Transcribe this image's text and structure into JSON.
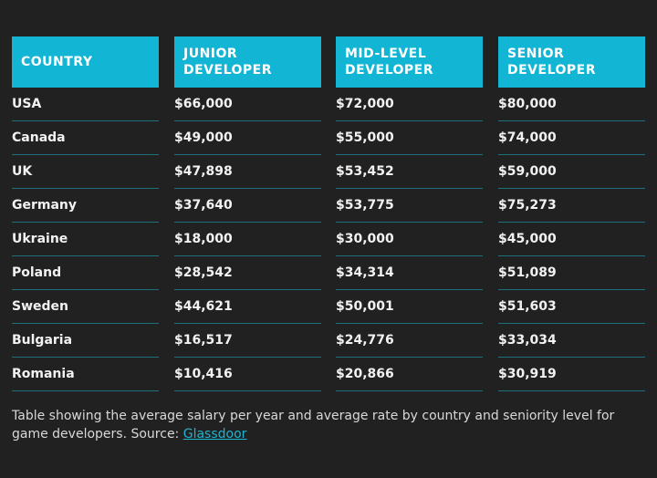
{
  "table": {
    "header": [
      "COUNTRY",
      "JUNIOR DEVELOPER",
      "MID-LEVEL DEVELOPER",
      "SENIOR DEVELOPER"
    ],
    "rows": [
      [
        "USA",
        "$66,000",
        "$72,000",
        "$80,000"
      ],
      [
        "Canada",
        "$49,000",
        "$55,000",
        "$74,000"
      ],
      [
        "UK",
        "$47,898",
        "$53,452",
        "$59,000"
      ],
      [
        "Germany",
        "$37,640",
        "$53,775",
        "$75,273"
      ],
      [
        "Ukraine",
        "$18,000",
        "$30,000",
        "$45,000"
      ],
      [
        "Poland",
        "$28,542",
        "$34,314",
        "$51,089"
      ],
      [
        "Sweden",
        "$44,621",
        "$50,001",
        "$51,603"
      ],
      [
        "Bulgaria",
        "$16,517",
        "$24,776",
        "$33,034"
      ],
      [
        "Romania",
        "$10,416",
        "$20,866",
        "$30,919"
      ]
    ]
  },
  "caption": {
    "text": "Table showing the average salary per year and average rate by country and seniority level for game developers. Source: ",
    "link": "Glassdoor"
  }
}
